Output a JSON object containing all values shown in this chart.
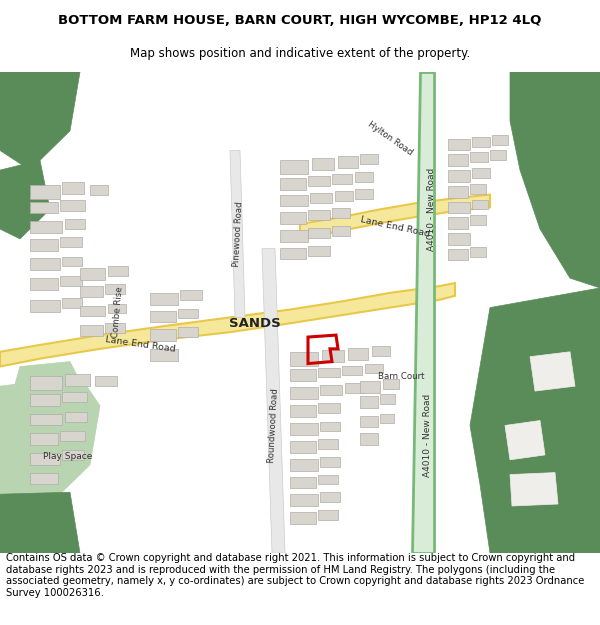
{
  "title_line1": "BOTTOM FARM HOUSE, BARN COURT, HIGH WYCOMBE, HP12 4LQ",
  "title_line2": "Map shows position and indicative extent of the property.",
  "footer": "Contains OS data © Crown copyright and database right 2021. This information is subject to Crown copyright and database rights 2023 and is reproduced with the permission of HM Land Registry. The polygons (including the associated geometry, namely x, y co-ordinates) are subject to Crown copyright and database rights 2023 Ordnance Survey 100026316.",
  "title_fontsize": 9.5,
  "subtitle_fontsize": 8.5,
  "footer_fontsize": 7.2,
  "bg_color": "#ffffff",
  "map_bg": "#f5f3f0",
  "green_dark": "#5a8c5a",
  "green_light": "#b8d4b0",
  "road_yellow": "#e8c84a",
  "road_yellow_light": "#f5e89a",
  "road_green_line": "#78b878",
  "road_green_fill": "#d8ecd8",
  "building_color": "#d8d5cf",
  "building_edge": "#b0ada8",
  "plot_outline": "#cc0000",
  "text_color": "#000000",
  "label_color": "#333333"
}
